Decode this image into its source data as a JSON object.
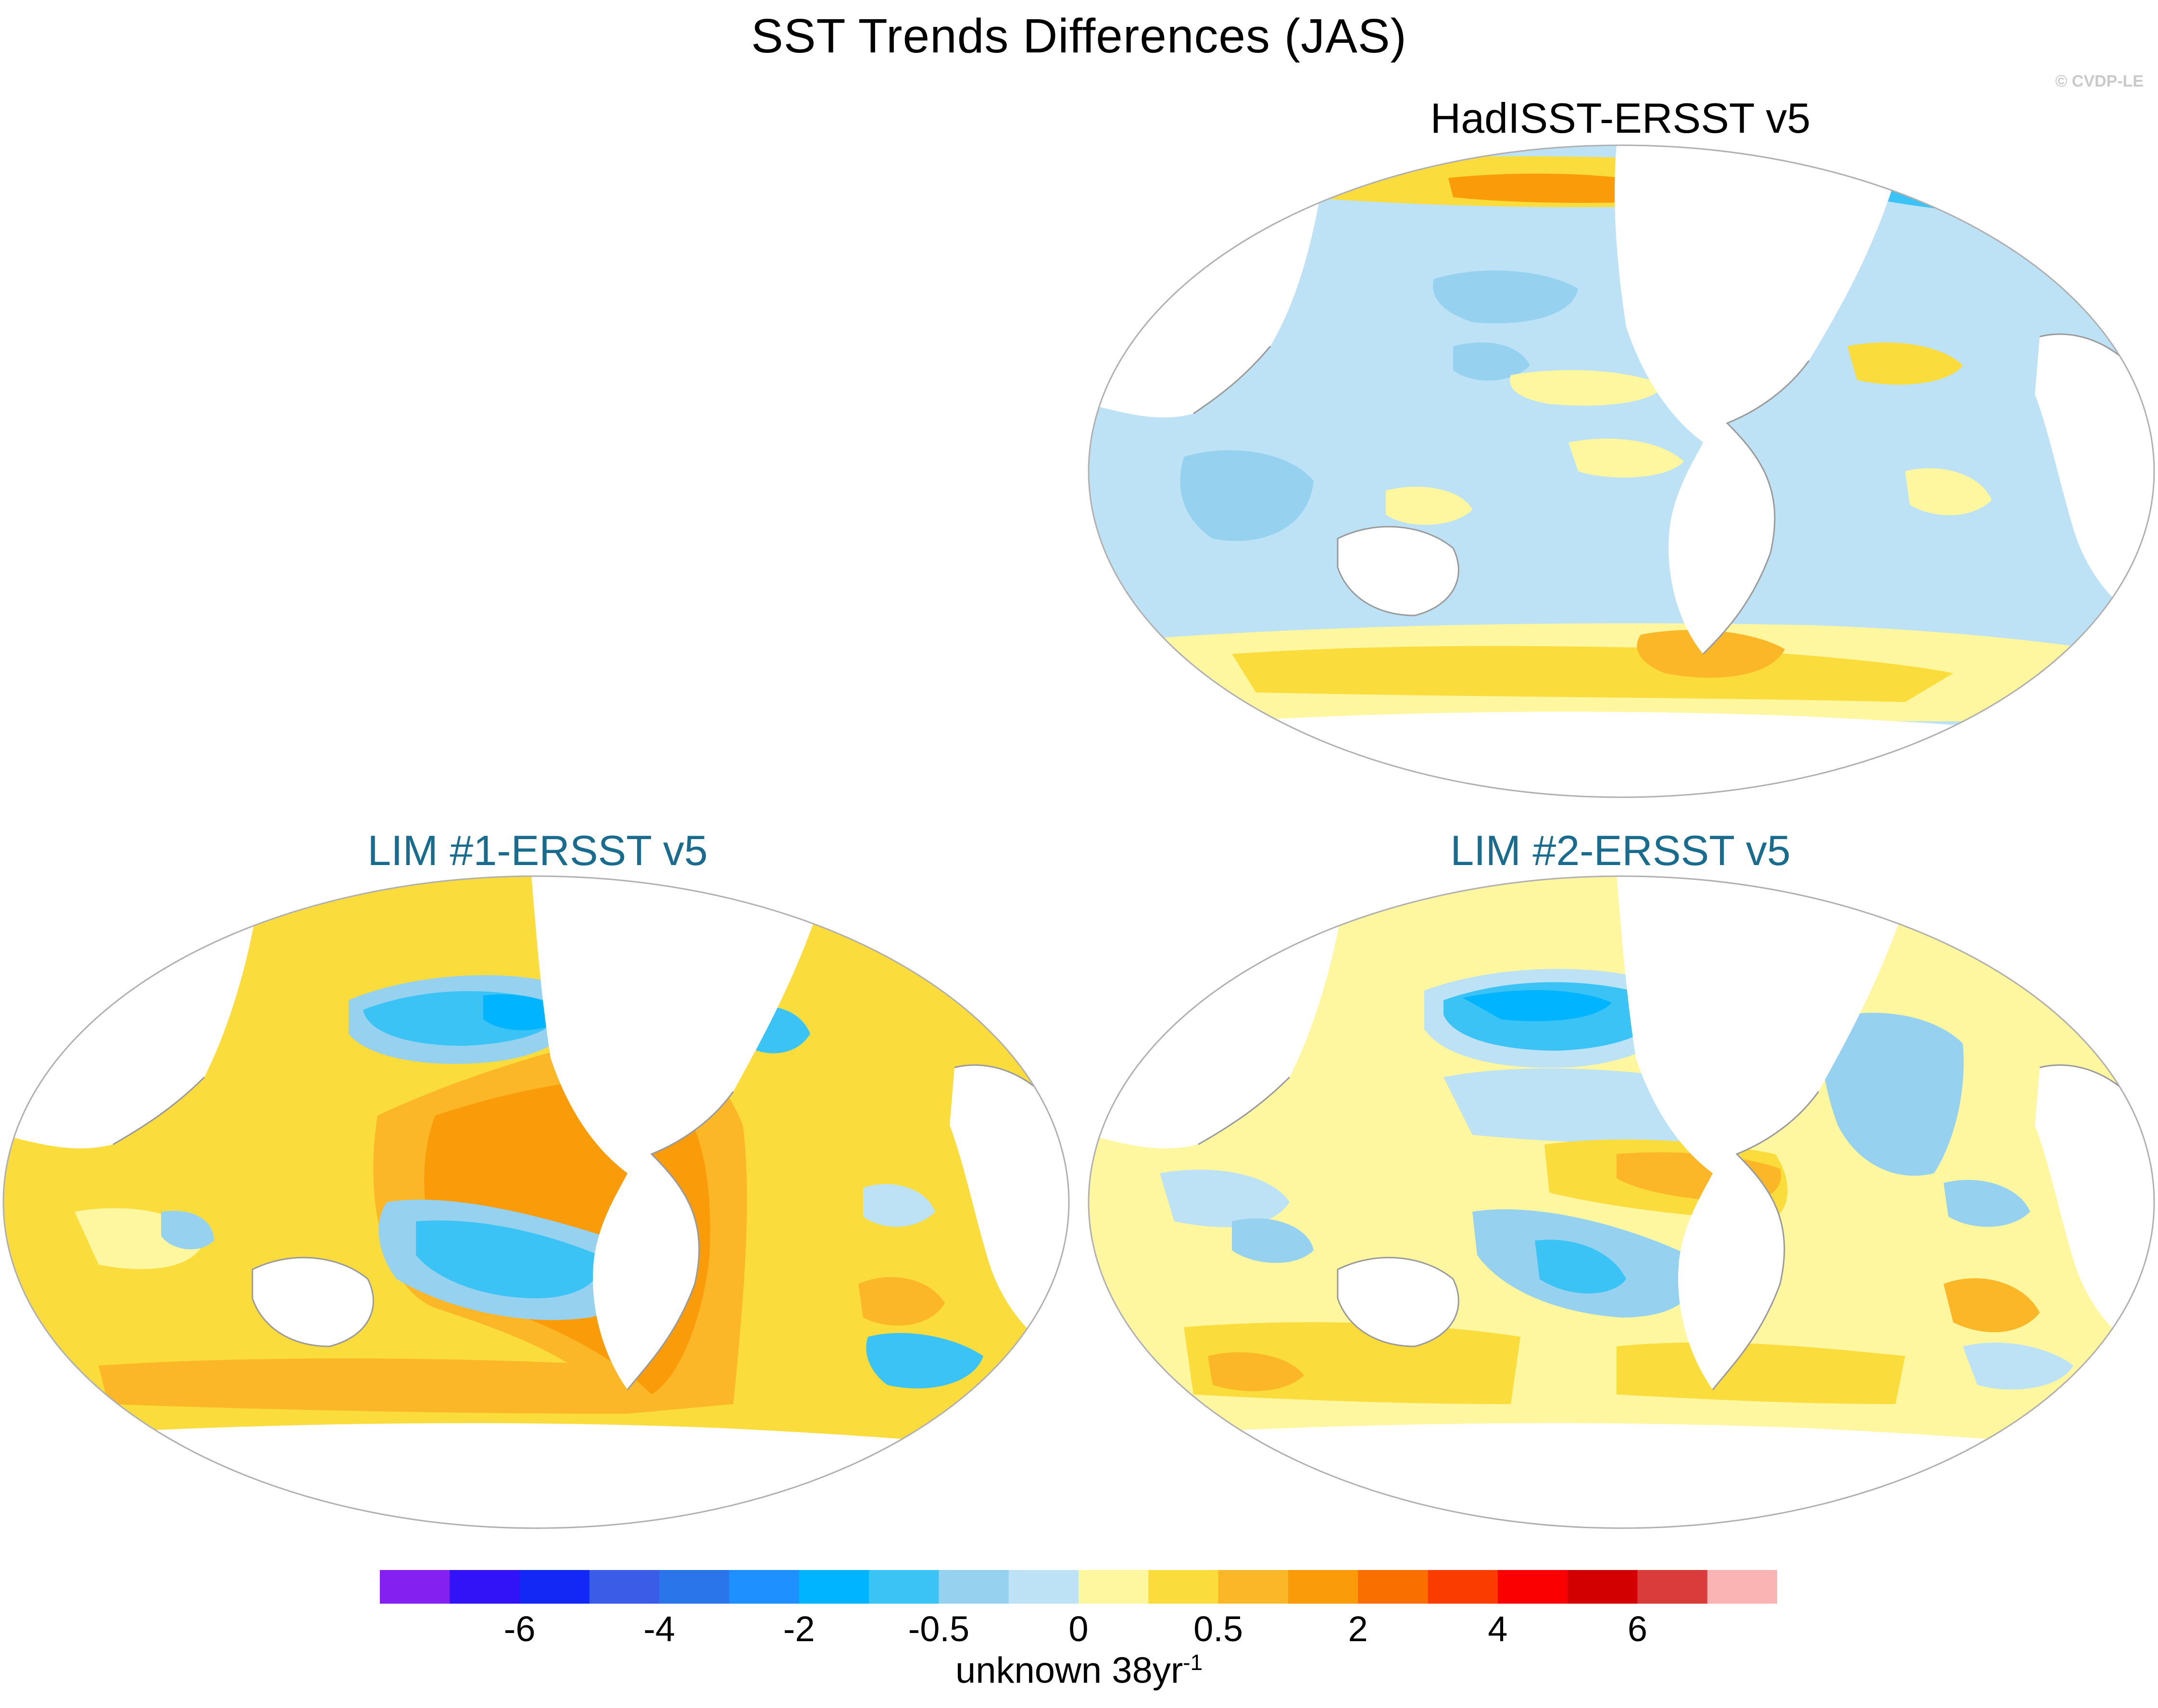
{
  "title": "SST Trends Differences (JAS)",
  "watermark": "© CVDP-LE",
  "panels": [
    {
      "id": "hadisst",
      "title": "HadISST-ERSST v5",
      "title_color": "#000000"
    },
    {
      "id": "lim1",
      "title": "LIM #1-ERSST v5",
      "title_color": "#1a6c8e"
    },
    {
      "id": "lim2",
      "title": "LIM #2-ERSST v5",
      "title_color": "#1a6c8e"
    }
  ],
  "colorbar": {
    "colors": [
      "#8420f0",
      "#3212f7",
      "#1428f5",
      "#3a5ce6",
      "#2b75ea",
      "#1e90ff",
      "#00b4ff",
      "#3cc3f5",
      "#96d2f0",
      "#bde2f5",
      "#fff6a0",
      "#fadc3c",
      "#fbb727",
      "#fa9b0a",
      "#fa7000",
      "#fa3c00",
      "#fa0000",
      "#d20000",
      "#da3b3b",
      "#fab4b4"
    ],
    "tick_labels": [
      "-6",
      "-4",
      "-2",
      "-0.5",
      "0",
      "0.5",
      "2",
      "4",
      "6"
    ],
    "units_text": "unknown 38yr",
    "units_sup": "-1"
  }
}
